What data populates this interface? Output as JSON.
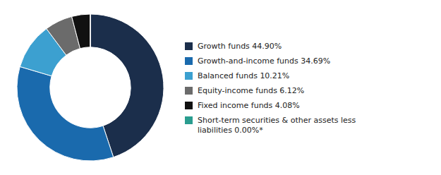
{
  "chart_data": {
    "type": "donut",
    "categories": [
      "Growth funds 44.90%",
      "Growth-and-income funds 34.69%",
      "Balanced funds 10.21%",
      "Equity-income funds 6.12%",
      "Fixed income funds 4.08%",
      "Short-term securities & other assets less\nliabilities 0.00%*"
    ],
    "values": [
      44.9,
      34.69,
      10.21,
      6.12,
      4.08,
      0.001
    ],
    "colors": [
      "#1b2e4b",
      "#1a6aad",
      "#3ca0d0",
      "#6b6b6b",
      "#111111",
      "#2a9d8f"
    ],
    "legend": "right"
  }
}
